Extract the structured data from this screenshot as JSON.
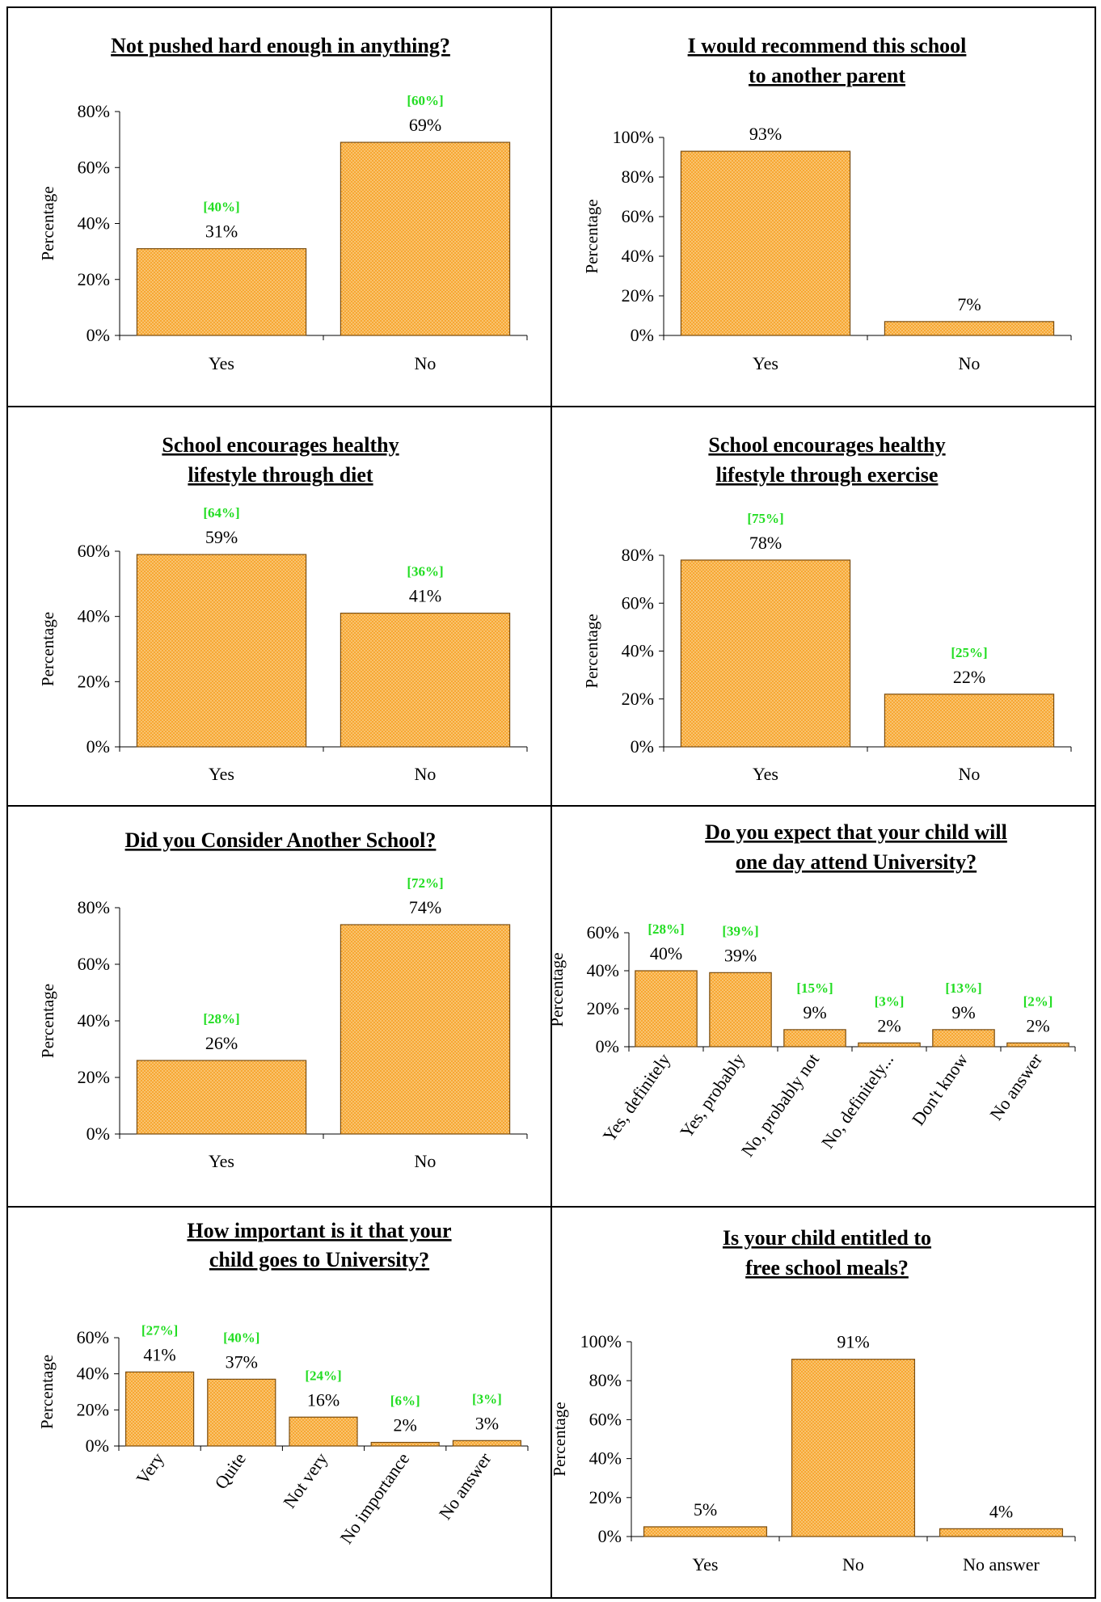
{
  "colors": {
    "bar_fill": "#f7a733",
    "bar_dot": "#fbd89a",
    "bar_stroke": "#7a4d10",
    "prior_label": "#22dd22"
  },
  "chart_data": [
    {
      "type": "bar",
      "title": "Not pushed hard enough in anything?",
      "ylabel": "Percentage",
      "categories": [
        "Yes",
        "No"
      ],
      "values": [
        31,
        69
      ],
      "value_labels": [
        "31%",
        "69%"
      ],
      "prior_labels": [
        "[40%]",
        "[60%]"
      ],
      "ylim": [
        0,
        80
      ],
      "yticks": [
        "0%",
        "20%",
        "40%",
        "60%",
        "80%"
      ],
      "rotate_xlabels": false
    },
    {
      "type": "bar",
      "title": "I would recommend this school to another parent",
      "ylabel": "Percentage",
      "categories": [
        "Yes",
        "No"
      ],
      "values": [
        93,
        7
      ],
      "value_labels": [
        "93%",
        "7%"
      ],
      "prior_labels": [
        "",
        ""
      ],
      "ylim": [
        0,
        100
      ],
      "yticks": [
        "0%",
        "20%",
        "40%",
        "60%",
        "80%",
        "100%"
      ],
      "rotate_xlabels": false
    },
    {
      "type": "bar",
      "title": "School encourages healthy lifestyle through diet",
      "ylabel": "Percentage",
      "categories": [
        "Yes",
        "No"
      ],
      "values": [
        59,
        41
      ],
      "value_labels": [
        "59%",
        "41%"
      ],
      "prior_labels": [
        "[64%]",
        "[36%]"
      ],
      "ylim": [
        0,
        60
      ],
      "yticks": [
        "0%",
        "20%",
        "40%",
        "60%"
      ],
      "rotate_xlabels": false
    },
    {
      "type": "bar",
      "title": "School encourages healthy lifestyle through exercise",
      "ylabel": "Percentage",
      "categories": [
        "Yes",
        "No"
      ],
      "values": [
        78,
        22
      ],
      "value_labels": [
        "78%",
        "22%"
      ],
      "prior_labels": [
        "[75%]",
        "[25%]"
      ],
      "ylim": [
        0,
        80
      ],
      "yticks": [
        "0%",
        "20%",
        "40%",
        "60%",
        "80%"
      ],
      "rotate_xlabels": false
    },
    {
      "type": "bar",
      "title": "Did you Consider Another School?",
      "ylabel": "Percentage",
      "categories": [
        "Yes",
        "No"
      ],
      "values": [
        26,
        74
      ],
      "value_labels": [
        "26%",
        "74%"
      ],
      "prior_labels": [
        "[28%]",
        "[72%]"
      ],
      "ylim": [
        0,
        80
      ],
      "yticks": [
        "0%",
        "20%",
        "40%",
        "60%",
        "80%"
      ],
      "rotate_xlabels": false
    },
    {
      "type": "bar",
      "title": "Do you expect that your child will one day attend University?",
      "ylabel": "Percentage",
      "categories": [
        "Yes, definitely",
        "Yes, probably",
        "No, probably not",
        "No, definitely...",
        "Don't know",
        "No answer"
      ],
      "values": [
        40,
        39,
        9,
        2,
        9,
        2
      ],
      "value_labels": [
        "40%",
        "39%",
        "9%",
        "2%",
        "9%",
        "2%"
      ],
      "prior_labels": [
        "[28%]",
        "[39%]",
        "[15%]",
        "[3%]",
        "[13%]",
        "[2%]"
      ],
      "ylim": [
        0,
        60
      ],
      "yticks": [
        "0%",
        "20%",
        "40%",
        "60%"
      ],
      "rotate_xlabels": true
    },
    {
      "type": "bar",
      "title": "How important is it that your child goes to University?",
      "ylabel": "Percentage",
      "categories": [
        "Very",
        "Quite",
        "Not very",
        "No importance",
        "No answer"
      ],
      "values": [
        41,
        37,
        16,
        2,
        3
      ],
      "value_labels": [
        "41%",
        "37%",
        "16%",
        "2%",
        "3%"
      ],
      "prior_labels": [
        "[27%]",
        "[40%]",
        "[24%]",
        "[6%]",
        "[3%]"
      ],
      "ylim": [
        0,
        60
      ],
      "yticks": [
        "0%",
        "20%",
        "40%",
        "60%"
      ],
      "rotate_xlabels": true
    },
    {
      "type": "bar",
      "title": "Is your child entitled to free school meals?",
      "ylabel": "Percentage",
      "categories": [
        "Yes",
        "No",
        "No answer"
      ],
      "values": [
        5,
        91,
        4
      ],
      "value_labels": [
        "5%",
        "91%",
        "4%"
      ],
      "prior_labels": [
        "",
        "",
        ""
      ],
      "ylim": [
        0,
        100
      ],
      "yticks": [
        "0%",
        "20%",
        "40%",
        "60%",
        "80%",
        "100%"
      ],
      "rotate_xlabels": false
    }
  ]
}
